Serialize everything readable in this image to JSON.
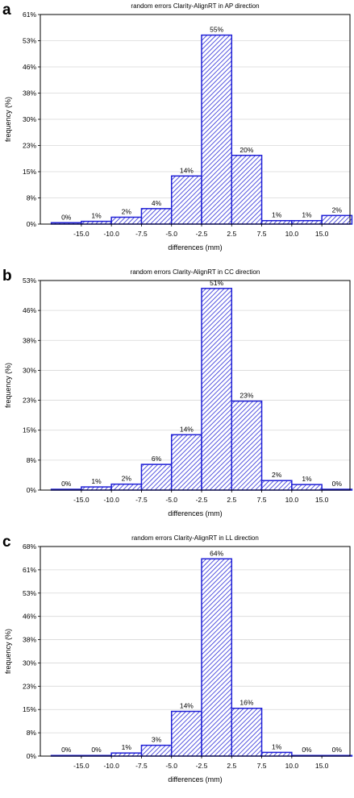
{
  "chart_data": [
    {
      "type": "bar",
      "panel": "a",
      "title": "random errors Clarity-AlignRT in AP direction",
      "xlabel": "differences (mm)",
      "ylabel": "frequency (%)",
      "x_ticks": [
        "-15.0",
        "-10.0",
        "-7.5",
        "-5.0",
        "-2.5",
        "2.5",
        "7.5",
        "10.0",
        "15.0"
      ],
      "y_ticks": [
        "0%",
        "8%",
        "15%",
        "23%",
        "30%",
        "38%",
        "46%",
        "53%",
        "61%"
      ],
      "ylim": [
        0,
        61
      ],
      "grid": true,
      "values": [
        0.4,
        0.8,
        2,
        4.5,
        14,
        55,
        20,
        1,
        1,
        2.5
      ],
      "labels": [
        "0%",
        "1%",
        "2%",
        "4%",
        "14%",
        "55%",
        "20%",
        "1%",
        "1%",
        "2%"
      ]
    },
    {
      "type": "bar",
      "panel": "b",
      "title": "random errors Clarity-AlignRT in CC direction",
      "xlabel": "differences (mm)",
      "ylabel": "frequency (%)",
      "x_ticks": [
        "-15.0",
        "-10.0",
        "-7.5",
        "-5.0",
        "-2.5",
        "2.5",
        "7.5",
        "10.0",
        "15.0"
      ],
      "y_ticks": [
        "0%",
        "8%",
        "15%",
        "23%",
        "30%",
        "38%",
        "46%",
        "53%"
      ],
      "ylim": [
        0,
        53
      ],
      "grid": true,
      "values": [
        0.2,
        0.8,
        1.5,
        6.5,
        14,
        51,
        22.5,
        2.4,
        1.4,
        0.2
      ],
      "labels": [
        "0%",
        "1%",
        "2%",
        "6%",
        "14%",
        "51%",
        "23%",
        "2%",
        "1%",
        "0%"
      ]
    },
    {
      "type": "bar",
      "panel": "c",
      "title": "random errors Clarity-AlignRT in LL direction",
      "xlabel": "differences (mm)",
      "ylabel": "frequency (%)",
      "x_ticks": [
        "-15.0",
        "-10.0",
        "-7.5",
        "-5.0",
        "-2.5",
        "2.5",
        "7.5",
        "10.0",
        "15.0"
      ],
      "y_ticks": [
        "0%",
        "8%",
        "15%",
        "23%",
        "30%",
        "38%",
        "46%",
        "53%",
        "61%",
        "68%"
      ],
      "ylim": [
        0,
        68
      ],
      "grid": true,
      "values": [
        0.2,
        0.2,
        1,
        3.5,
        14.5,
        64,
        15.5,
        1.2,
        0.2,
        0.2
      ],
      "labels": [
        "0%",
        "0%",
        "1%",
        "3%",
        "14%",
        "64%",
        "16%",
        "1%",
        "0%",
        "0%"
      ]
    }
  ],
  "panels": [
    "a",
    "b",
    "c"
  ],
  "colors": {
    "bar_stroke": "#1f1fd6",
    "bar_hatch": "#2a2ad8",
    "grid": "#d8d8d8"
  }
}
